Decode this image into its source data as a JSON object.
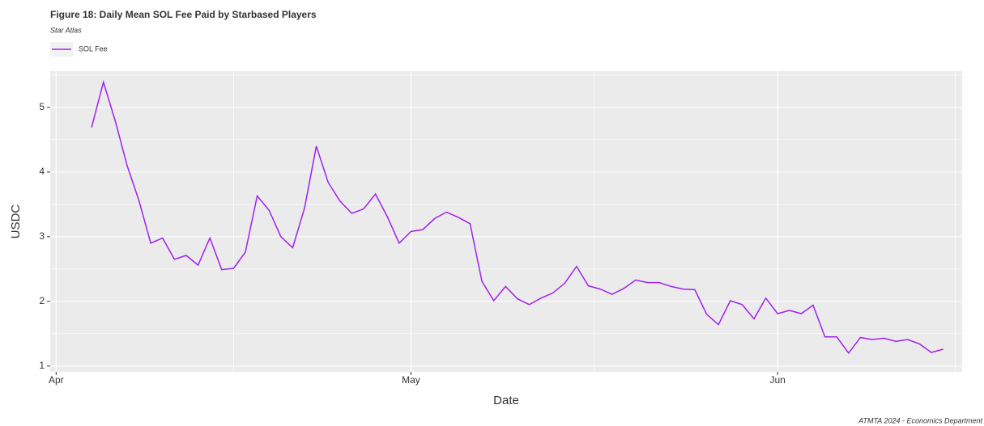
{
  "chart_data": {
    "type": "line",
    "title": "Figure 18: Daily Mean SOL Fee Paid by Starbased Players",
    "subtitle": "Star Atlas",
    "x_label": "Date",
    "y_label": "USDC",
    "caption": "ATMTA 2024 - Economics Department",
    "legend": "top-left",
    "grid": true,
    "x": [
      3,
      4,
      5,
      6,
      7,
      8,
      9,
      10,
      11,
      12,
      13,
      14,
      15,
      16,
      17,
      18,
      19,
      20,
      21,
      22,
      23,
      24,
      25,
      26,
      27,
      28,
      29,
      30,
      31,
      32,
      33,
      34,
      35,
      36,
      37,
      38,
      39,
      40,
      41,
      42,
      43,
      44,
      45,
      46,
      47,
      48,
      49,
      50,
      51,
      52,
      53,
      54,
      55,
      56,
      57,
      58,
      59,
      60,
      61,
      62,
      63,
      64,
      65,
      66,
      67,
      68,
      69,
      70,
      71,
      72,
      73,
      74,
      75
    ],
    "series": [
      {
        "name": "SOL Fee",
        "color": "#a020f0",
        "values": [
          4.69,
          5.39,
          4.79,
          4.1,
          3.56,
          2.9,
          2.98,
          2.65,
          2.71,
          2.56,
          2.98,
          2.49,
          2.51,
          2.76,
          3.63,
          3.41,
          3.0,
          2.83,
          3.44,
          4.4,
          3.84,
          3.55,
          3.36,
          3.43,
          3.66,
          3.31,
          2.9,
          3.08,
          3.11,
          3.28,
          3.38,
          3.3,
          3.2,
          2.31,
          2.01,
          2.23,
          2.04,
          1.95,
          2.05,
          2.13,
          2.28,
          2.54,
          2.24,
          2.19,
          2.11,
          2.2,
          2.33,
          2.29,
          2.29,
          2.23,
          2.19,
          2.18,
          1.8,
          1.64,
          2.01,
          1.95,
          1.73,
          2.05,
          1.81,
          1.86,
          1.81,
          1.94,
          1.45,
          1.45,
          1.2,
          1.44,
          1.41,
          1.43,
          1.38,
          1.41,
          1.34,
          1.21,
          1.26
        ]
      }
    ],
    "xlim": [
      -0.5,
      76.6
    ],
    "xticks": [
      {
        "value": 0,
        "label": "Apr"
      },
      {
        "value": 30,
        "label": "May"
      },
      {
        "value": 61,
        "label": "Jun"
      }
    ],
    "xminor": [
      15,
      45.5,
      76
    ],
    "ylim": [
      0.91,
      5.56
    ],
    "yticks": [
      1,
      2,
      3,
      4,
      5
    ],
    "yminor": [
      1.5,
      2.5,
      3.5,
      4.5,
      5.5
    ]
  }
}
